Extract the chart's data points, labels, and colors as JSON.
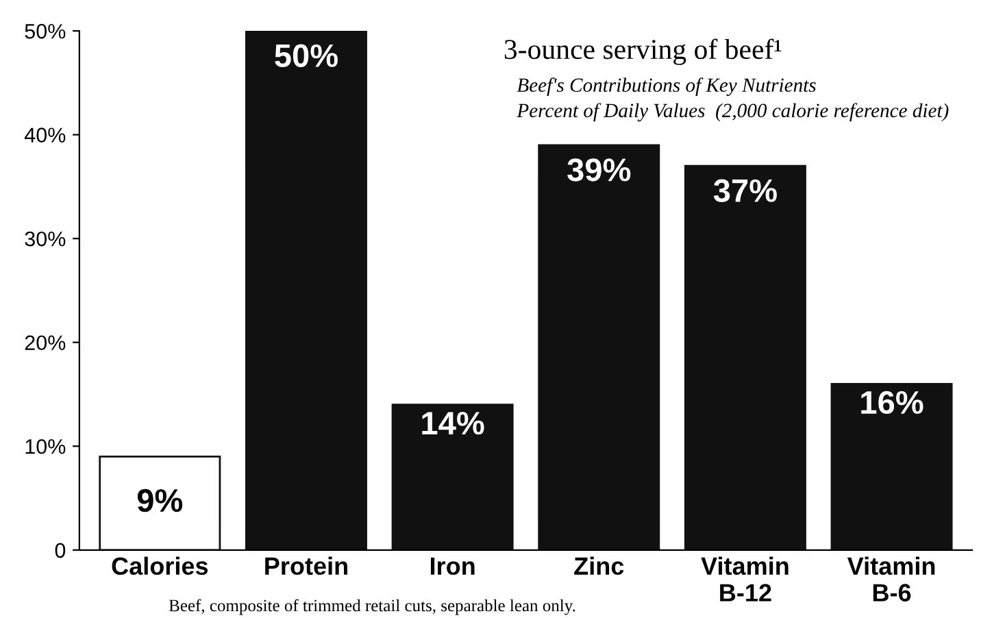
{
  "chart_data": {
    "type": "bar",
    "title": "3-ounce serving of beef¹",
    "subtitle": "Beef's Contributions of Key Nutrients\nPercent of Daily Values  (2,000 calorie reference diet)",
    "categories": [
      "Calories",
      "Protein",
      "Iron",
      "Zinc",
      "Vitamin\nB-12",
      "Vitamin\nB-6"
    ],
    "values": [
      9,
      50,
      14,
      39,
      37,
      16
    ],
    "colors": [
      "#ffffff",
      "#111111",
      "#111111",
      "#111111",
      "#111111",
      "#111111"
    ],
    "value_labels": [
      "9%",
      "50%",
      "14%",
      "39%",
      "37%",
      "16%"
    ],
    "ylim": [
      0,
      50
    ],
    "yticks": [
      0,
      {
        "value": 10,
        "label": "10%"
      },
      {
        "value": 20,
        "label": "20%"
      },
      {
        "value": 30,
        "label": "30%"
      },
      {
        "value": 40,
        "label": "40%"
      },
      {
        "value": 50,
        "label": "50%"
      }
    ],
    "annotations": [
      "Beef, composite of trimmed retail cuts, separable lean only."
    ],
    "grid": false,
    "legend": false
  }
}
